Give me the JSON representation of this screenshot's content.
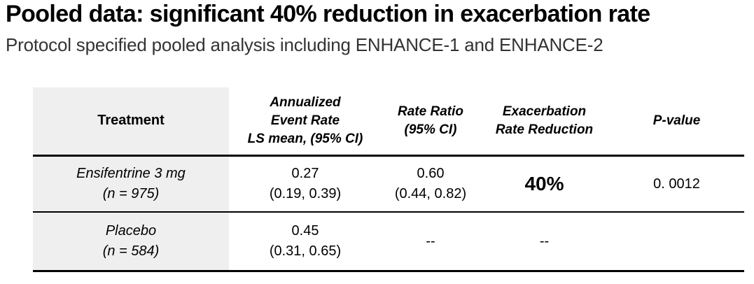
{
  "slide": {
    "title": "Pooled data: significant 40% reduction in exacerbation rate",
    "subtitle": "Protocol specified pooled analysis including ENHANCE-1 and ENHANCE-2"
  },
  "colors": {
    "title_text": "#000000",
    "subtitle_text": "#333333",
    "treatment_column_bg": "#efefef",
    "table_rule": "#000000"
  },
  "table": {
    "headers": {
      "treatment": "Treatment",
      "annualized_event_rate": "Annualized\nEvent Rate\nLS mean, (95% CI)",
      "rate_ratio": "Rate Ratio\n(95% CI)",
      "exacerbation_rate_reduction": "Exacerbation\nRate Reduction",
      "p_value": "P-value"
    },
    "rows": [
      {
        "treatment": "Ensifentrine 3 mg\n(n = 975)",
        "annualized_event_rate": "0.27\n(0.19, 0.39)",
        "rate_ratio": "0.60\n(0.44, 0.82)",
        "exacerbation_rate_reduction": "40%",
        "p_value": "0. 0012"
      },
      {
        "treatment": "Placebo\n(n = 584)",
        "annualized_event_rate": "0.45\n(0.31, 0.65)",
        "rate_ratio": "--",
        "exacerbation_rate_reduction": "--",
        "p_value": ""
      }
    ]
  }
}
